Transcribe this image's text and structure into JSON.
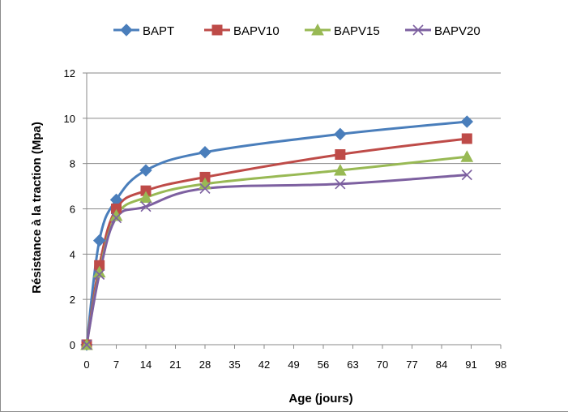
{
  "chart_data": {
    "type": "line",
    "title": "",
    "xlabel": "Age (jours)",
    "ylabel": "Résistance à la traction (Mpa)",
    "xlim": [
      0,
      98
    ],
    "ylim": [
      0,
      12
    ],
    "xticks": [
      0,
      7,
      14,
      21,
      28,
      35,
      42,
      49,
      56,
      63,
      70,
      77,
      84,
      91,
      98
    ],
    "yticks": [
      0,
      2,
      4,
      6,
      8,
      10,
      12
    ],
    "grid": "horizontal",
    "legend_position": "top",
    "x": [
      0,
      3,
      7,
      14,
      28,
      60,
      90
    ],
    "series": [
      {
        "name": "BAPT",
        "values": [
          0,
          4.6,
          6.4,
          7.7,
          8.5,
          9.3,
          9.85
        ],
        "color": "#4a7ebb",
        "marker": "diamond"
      },
      {
        "name": "BAPV10",
        "values": [
          0,
          3.5,
          6.0,
          6.8,
          7.4,
          8.4,
          9.1
        ],
        "color": "#be4b48",
        "marker": "square"
      },
      {
        "name": "BAPV15",
        "values": [
          0,
          3.2,
          5.7,
          6.5,
          7.1,
          7.7,
          8.3
        ],
        "color": "#98b954",
        "marker": "triangle"
      },
      {
        "name": "BAPV20",
        "values": [
          0,
          3.1,
          5.6,
          6.1,
          6.9,
          7.1,
          7.5
        ],
        "color": "#7d60a0",
        "marker": "x"
      }
    ]
  }
}
